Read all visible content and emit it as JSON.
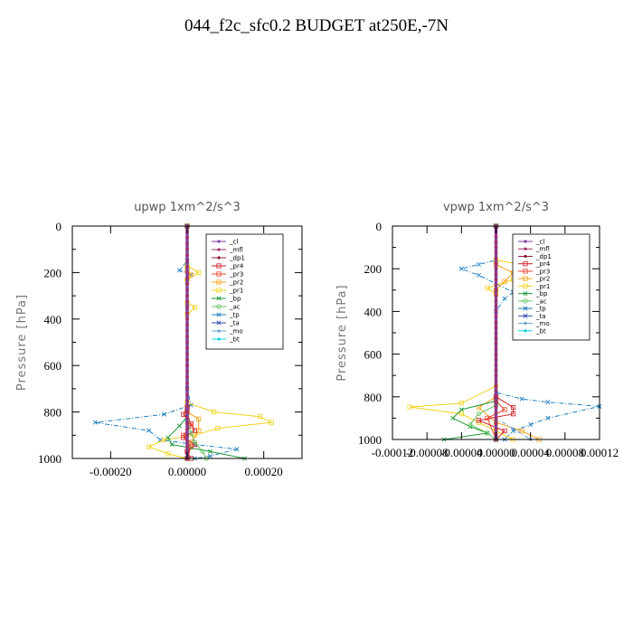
{
  "figure_title": "044_f2c_sfc0.2  BUDGET at250E,-7N",
  "colors": {
    "_cl": "#7b3f9e",
    "_mfl": "#a0306a",
    "_dp1": "#8b1a3a",
    "_pr4": "#d01c24",
    "_pr3": "#e8402a",
    "_pr2": "#f5a31a",
    "_pr1": "#f2d11a",
    "_bp": "#1e9a3a",
    "_ac": "#60c060",
    "_tp": "#1f7fc0",
    "_ta": "#3050b0",
    "_mo": "#6aa0d0",
    "_bt": "#10d0e0"
  },
  "chart_data": [
    {
      "type": "line",
      "title": "upwp   1xm^2/s^3",
      "ylabel": "Pressure [hPa]",
      "xlabel": "",
      "xlim": [
        -0.0003,
        0.0003
      ],
      "ylim": [
        1000,
        0
      ],
      "xticks": [
        "-0.00020",
        "0.00000",
        "0.00020"
      ],
      "xtick_values": [
        -0.0002,
        0.0,
        0.0002
      ],
      "yticks": [
        "0",
        "200",
        "400",
        "600",
        "800",
        "1000"
      ],
      "legend": [
        "_cl",
        "_mfl",
        "_dp1",
        "_pr4",
        "_pr3",
        "_pr2",
        "_pr1",
        "_bp",
        "_ac",
        "_tp",
        "_ta",
        "_mo",
        "_bt"
      ],
      "legend_position": "top-right",
      "grid": false,
      "series": [
        {
          "name": "_tp",
          "points": [
            [
              0,
              0
            ],
            [
              0,
              150
            ],
            [
              -2e-05,
              190
            ],
            [
              1e-05,
              210
            ],
            [
              0,
              240
            ],
            [
              0,
              350
            ],
            [
              0,
              700
            ],
            [
              1e-05,
              770
            ],
            [
              -6e-05,
              810
            ],
            [
              -0.00024,
              845
            ],
            [
              -0.0001,
              880
            ],
            [
              -7e-05,
              920
            ],
            [
              2e-05,
              940
            ],
            [
              0.00013,
              960
            ],
            [
              6e-05,
              990
            ],
            [
              2e-05,
              1000
            ]
          ]
        },
        {
          "name": "_pr1",
          "points": [
            [
              0,
              0
            ],
            [
              0,
              170
            ],
            [
              3e-05,
              200
            ],
            [
              0,
              230
            ],
            [
              0,
              330
            ],
            [
              2e-05,
              350
            ],
            [
              0,
              380
            ],
            [
              0,
              760
            ],
            [
              7e-05,
              800
            ],
            [
              0.00019,
              820
            ],
            [
              0.00022,
              845
            ],
            [
              8e-05,
              870
            ],
            [
              2e-05,
              900
            ],
            [
              -6e-05,
              920
            ],
            [
              -0.0001,
              950
            ],
            [
              -5e-05,
              980
            ],
            [
              0,
              1000
            ]
          ]
        },
        {
          "name": "_pr2",
          "points": [
            [
              0,
              0
            ],
            [
              0,
              190
            ],
            [
              1e-05,
              210
            ],
            [
              0,
              230
            ],
            [
              0,
              800
            ],
            [
              3e-05,
              830
            ],
            [
              3e-05,
              880
            ],
            [
              1e-05,
              930
            ],
            [
              0,
              1000
            ]
          ]
        },
        {
          "name": "_pr4",
          "points": [
            [
              0,
              0
            ],
            [
              0,
              780
            ],
            [
              -1e-05,
              810
            ],
            [
              1e-05,
              850
            ],
            [
              2e-05,
              880
            ],
            [
              -1e-05,
              910
            ],
            [
              2e-05,
              940
            ],
            [
              0,
              970
            ],
            [
              1e-05,
              1000
            ]
          ]
        },
        {
          "name": "_pr3",
          "points": [
            [
              0,
              0
            ],
            [
              0,
              800
            ],
            [
              1e-05,
              860
            ],
            [
              -1e-05,
              900
            ],
            [
              1e-05,
              950
            ],
            [
              0,
              1000
            ]
          ]
        },
        {
          "name": "_bp",
          "points": [
            [
              0,
              0
            ],
            [
              0,
              820
            ],
            [
              -2e-05,
              860
            ],
            [
              -5e-05,
              910
            ],
            [
              -4e-05,
              940
            ],
            [
              6e-05,
              970
            ],
            [
              0.00015,
              1000
            ]
          ]
        },
        {
          "name": "_ac",
          "points": [
            [
              0,
              0
            ],
            [
              0,
              840
            ],
            [
              1e-05,
              890
            ],
            [
              2e-05,
              930
            ],
            [
              4e-05,
              970
            ],
            [
              5e-05,
              1000
            ]
          ]
        },
        {
          "name": "_ta",
          "points": [
            [
              0,
              0
            ],
            [
              0,
              1000
            ]
          ]
        },
        {
          "name": "_mfl",
          "points": [
            [
              0,
              0
            ],
            [
              0,
              1000
            ]
          ]
        },
        {
          "name": "_cl",
          "points": [
            [
              0,
              0
            ],
            [
              0,
              1000
            ]
          ]
        }
      ]
    },
    {
      "type": "line",
      "title": "vpwp   1xm^2/s^3",
      "ylabel": "Pressure [hPa]",
      "xlabel": "",
      "xlim": [
        -0.00012,
        0.00012
      ],
      "ylim": [
        1000,
        0
      ],
      "xticks": [
        "-0.00012",
        "-0.00008",
        "-0.00004",
        "0.00000",
        "0.00004",
        "0.00008",
        "0.00012"
      ],
      "xtick_values": [
        -0.00012,
        -8e-05,
        -4e-05,
        0.0,
        4e-05,
        8e-05,
        0.00012
      ],
      "yticks": [
        "0",
        "200",
        "400",
        "600",
        "800",
        "1000"
      ],
      "legend": [
        "_cl",
        "_mfl",
        "_dp1",
        "_pr4",
        "_pr3",
        "_pr2",
        "_pr1",
        "_bp",
        "_ac",
        "_tp",
        "_ta",
        "_mo",
        "_bt"
      ],
      "legend_position": "top-right",
      "grid": false,
      "series": [
        {
          "name": "_tp",
          "points": [
            [
              0,
              0
            ],
            [
              0,
              160
            ],
            [
              -2e-05,
              180
            ],
            [
              -4e-05,
              200
            ],
            [
              -2e-05,
              230
            ],
            [
              2e-05,
              310
            ],
            [
              1e-05,
              340
            ],
            [
              0,
              400
            ],
            [
              0,
              780
            ],
            [
              3e-05,
              810
            ],
            [
              6e-05,
              825
            ],
            [
              0.00012,
              845
            ],
            [
              6e-05,
              900
            ],
            [
              4e-05,
              930
            ],
            [
              2e-05,
              960
            ],
            [
              1e-05,
              1000
            ]
          ]
        },
        {
          "name": "_pr1",
          "points": [
            [
              0,
              0
            ],
            [
              0,
              160
            ],
            [
              3e-05,
              180
            ],
            [
              5e-05,
              210
            ],
            [
              2e-05,
              250
            ],
            [
              -1e-05,
              290
            ],
            [
              0,
              320
            ],
            [
              0,
              750
            ],
            [
              -4e-05,
              830
            ],
            [
              -0.0001,
              848
            ],
            [
              -4e-05,
              880
            ],
            [
              -2e-05,
              920
            ],
            [
              0,
              960
            ],
            [
              2e-05,
              1000
            ]
          ]
        },
        {
          "name": "_pr2",
          "points": [
            [
              0,
              0
            ],
            [
              0,
              180
            ],
            [
              2e-05,
              220
            ],
            [
              1e-05,
              260
            ],
            [
              0,
              300
            ],
            [
              0,
              800
            ],
            [
              -2e-05,
              850
            ],
            [
              0,
              920
            ],
            [
              3e-05,
              960
            ],
            [
              5e-05,
              1000
            ]
          ]
        },
        {
          "name": "_pr4",
          "points": [
            [
              0,
              0
            ],
            [
              0,
              800
            ],
            [
              2e-05,
              850
            ],
            [
              2e-05,
              880
            ],
            [
              -2e-05,
              910
            ],
            [
              1e-05,
              960
            ],
            [
              0,
              1000
            ]
          ]
        },
        {
          "name": "_pr3",
          "points": [
            [
              0,
              0
            ],
            [
              0,
              820
            ],
            [
              1e-05,
              860
            ],
            [
              -1e-05,
              900
            ],
            [
              0,
              1000
            ]
          ]
        },
        {
          "name": "_bp",
          "points": [
            [
              0,
              0
            ],
            [
              0,
              820
            ],
            [
              -4e-05,
              860
            ],
            [
              -5e-05,
              900
            ],
            [
              -3e-05,
              940
            ],
            [
              -1e-05,
              970
            ],
            [
              -6e-05,
              1000
            ]
          ]
        },
        {
          "name": "_ac",
          "points": [
            [
              0,
              0
            ],
            [
              0,
              840
            ],
            [
              -2e-05,
              880
            ],
            [
              -3e-05,
              930
            ],
            [
              -1e-05,
              970
            ],
            [
              0,
              1000
            ]
          ]
        },
        {
          "name": "_mo",
          "points": [
            [
              0,
              0
            ],
            [
              0,
              900
            ],
            [
              2e-05,
              950
            ],
            [
              4e-05,
              1000
            ]
          ]
        },
        {
          "name": "_ta",
          "points": [
            [
              0,
              0
            ],
            [
              0,
              1000
            ]
          ]
        },
        {
          "name": "_mfl",
          "points": [
            [
              0,
              0
            ],
            [
              0,
              1000
            ]
          ]
        },
        {
          "name": "_cl",
          "points": [
            [
              0,
              0
            ],
            [
              0,
              1000
            ]
          ]
        }
      ]
    }
  ]
}
